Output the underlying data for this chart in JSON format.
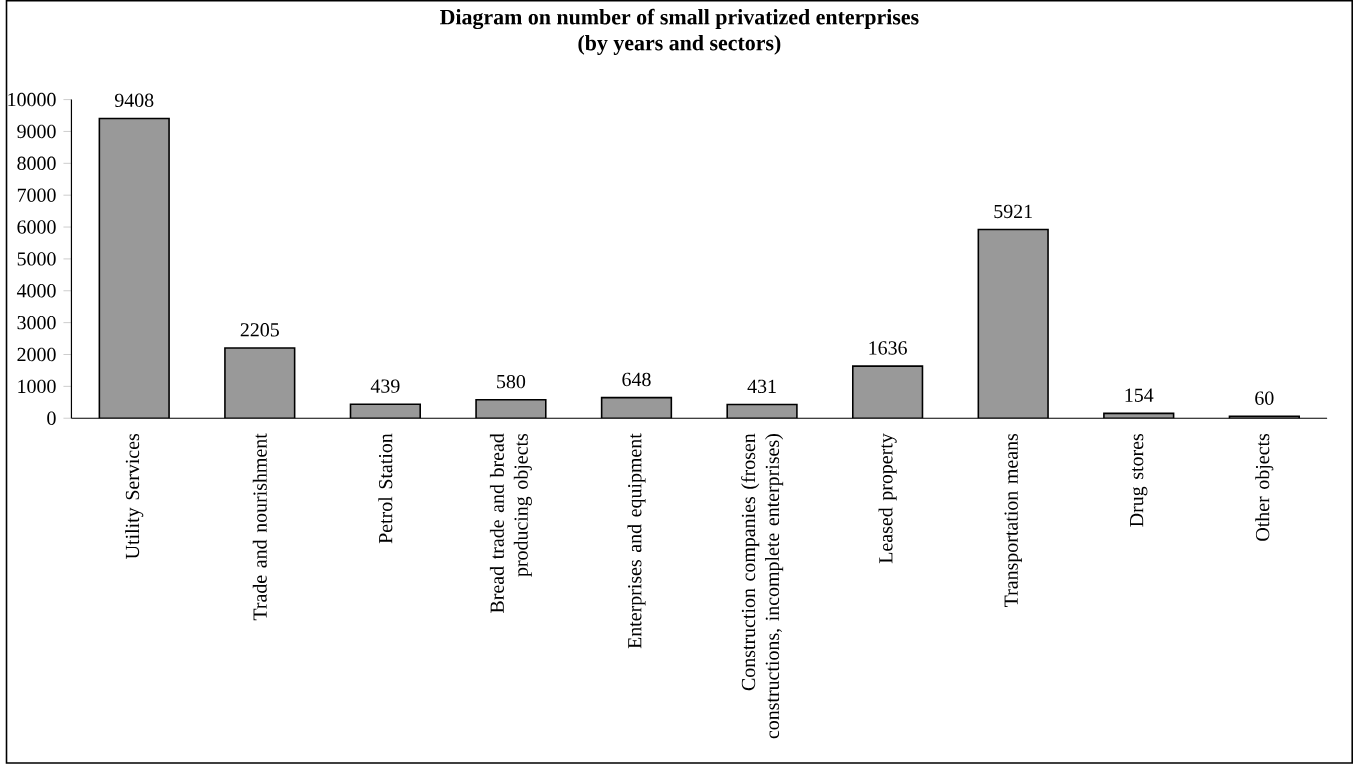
{
  "chart_data": {
    "type": "bar",
    "title": "Diagram on number of small privatized enterprises",
    "subtitle": "(by years and sectors)",
    "categories": [
      "Utility Services",
      "Trade and nourishment",
      "Petrol Station",
      "Bread trade and bread producing objects",
      "Enterprises and equipment",
      "Construction companies (frosen constructions, incomplete enterprises)",
      "Leased property",
      "Transportation means",
      "Drug stores",
      "Other objects"
    ],
    "values": [
      9408,
      2205,
      439,
      580,
      648,
      431,
      1636,
      5921,
      154,
      60
    ],
    "color": "#999999",
    "ylim": [
      0,
      10000
    ],
    "yticks": [
      0,
      1000,
      2000,
      3000,
      4000,
      5000,
      6000,
      7000,
      8000,
      9000,
      10000
    ],
    "data_labels": true
  }
}
